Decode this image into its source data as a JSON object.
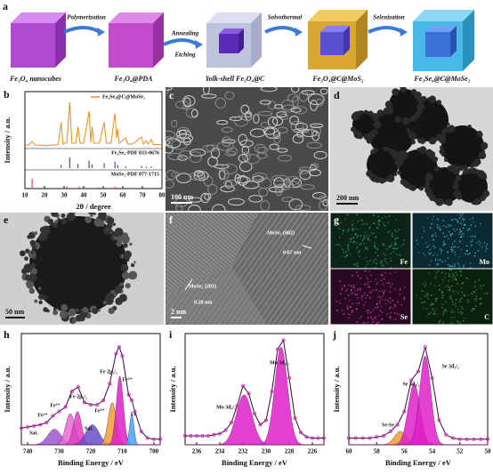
{
  "panel_a": {
    "label": "a",
    "products": [
      "Fe₃O₄ nanocubes",
      "Fe₃O₄@PDA",
      "Yolk-shell Fe₃O₄@C",
      "Fe₃O₄@C@MoS₂",
      "Fe₃Se₄@C@MoSe₂"
    ],
    "steps": [
      "Polymerization",
      "Annealing",
      "Etching",
      "Solvothermal",
      "Selenization"
    ]
  },
  "images": [
    {
      "label": "c",
      "scale_bar": "100 nm"
    },
    {
      "label": "d",
      "scale_bar": "200 nm"
    },
    {
      "label": "e",
      "scale_bar": "50 nm"
    },
    {
      "label": "f",
      "scale_bar": "2 nm",
      "annotations": [
        "MoSe₂ (002)",
        "0.67 nm",
        "MoSe₂ (203)",
        "0.28 nm"
      ]
    }
  ],
  "panel_g": {
    "label": "g",
    "maps": [
      "Fe",
      "Mo",
      "Se",
      "C"
    ]
  },
  "chart_data": [
    {
      "type": "line",
      "label": "b",
      "xlabel": "2θ / degree",
      "ylabel": "Intensity / a.u.",
      "xlim": [
        10,
        80
      ],
      "xticks": [
        10,
        20,
        30,
        40,
        50,
        60,
        70,
        80
      ],
      "ylim": [
        0,
        100
      ],
      "series": [
        {
          "name": "Fe₃Se₄@C@MoSe₂",
          "color": "#f08a24",
          "x": [
            10,
            12,
            13.6,
            15,
            20,
            25,
            27,
            28.5,
            29.5,
            31.4,
            32.9,
            34,
            36,
            37.1,
            38.2,
            40,
            42.8,
            43.6,
            44.3,
            45.2,
            48,
            50.5,
            51.6,
            54,
            56,
            56.8,
            57.4,
            58.2,
            61.5,
            62.5,
            65,
            69.6,
            70.5,
            72,
            73,
            74.5,
            75.5,
            78,
            80
          ],
          "values": [
            4,
            4,
            12,
            4,
            3,
            4,
            5,
            55,
            6,
            10,
            100,
            8,
            8,
            45,
            8,
            8,
            80,
            10,
            45,
            8,
            8,
            55,
            8,
            8,
            75,
            20,
            40,
            8,
            20,
            6,
            6,
            22,
            6,
            14,
            6,
            16,
            5,
            5,
            4
          ]
        },
        {
          "name": "Fe₃Se₄-PDF 033-0676",
          "color": "#6a3fb5",
          "type": "stick",
          "x": [
            28.5,
            32.9,
            37.1,
            42.8,
            44.3,
            50.5,
            56,
            57.4,
            61.5,
            69.6,
            72,
            74.5
          ],
          "values": [
            30,
            100,
            40,
            70,
            35,
            45,
            60,
            30,
            15,
            20,
            12,
            14
          ]
        },
        {
          "name": "MoSe₂-PDF 077-1715",
          "color": "#e0409a",
          "type": "stick",
          "x": [
            13.7,
            31.4,
            37.8,
            47.5,
            55.9,
            57
          ],
          "values": [
            100,
            25,
            20,
            15,
            18,
            12
          ]
        }
      ]
    },
    {
      "type": "area",
      "label": "h",
      "xlabel": "Binding Energy / eV",
      "ylabel": "Intensity / a.u.",
      "xlim": [
        742,
        698
      ],
      "xticks": [
        740,
        730,
        720,
        710,
        700
      ],
      "ylim": [
        0,
        100
      ],
      "series": [
        {
          "color": "#e020c8",
          "x": [
            742,
            740,
            738,
            736,
            734,
            732,
            730,
            728,
            726,
            724,
            722,
            720,
            718,
            716,
            714,
            712,
            711,
            710,
            708,
            707,
            706,
            704,
            702,
            700,
            698
          ],
          "values": [
            15,
            16,
            17,
            18,
            20,
            26,
            30,
            34,
            48,
            52,
            38,
            36,
            36,
            40,
            55,
            82,
            88,
            80,
            45,
            40,
            30,
            12,
            6,
            5,
            5
          ]
        }
      ],
      "components": [
        {
          "center": 731.5,
          "height": 14,
          "fwhm": 5,
          "color": "#9b59d0"
        },
        {
          "center": 726.5,
          "height": 28,
          "fwhm": 3.5,
          "color": "#e86bd0"
        },
        {
          "center": 724.2,
          "height": 30,
          "fwhm": 3,
          "color": "#e040c0"
        },
        {
          "center": 719.5,
          "height": 18,
          "fwhm": 5,
          "color": "#6a4fc8"
        },
        {
          "center": 713.2,
          "height": 38,
          "fwhm": 3,
          "color": "#f0a030"
        },
        {
          "center": 710.8,
          "height": 62,
          "fwhm": 2.6,
          "color": "#e020c8"
        },
        {
          "center": 707,
          "height": 28,
          "fwhm": 1.6,
          "color": "#40a8f0"
        }
      ],
      "annotations": [
        "Fe 2p₃/₂",
        "Fe²⁺",
        "Fe 2p₁/₂",
        "Fe³⁺",
        "Fe³⁺",
        "Fe²⁺",
        "Fe",
        "Sat.",
        "Sat."
      ]
    },
    {
      "type": "area",
      "label": "i",
      "xlabel": "Binding Energy / eV",
      "ylabel": "Intensity / a.u.",
      "xlim": [
        237,
        225
      ],
      "xticks": [
        236,
        234,
        232,
        230,
        228,
        226
      ],
      "ylim": [
        0,
        100
      ],
      "series": [
        {
          "color": "#e020c8",
          "x": [
            237,
            236.5,
            236,
            235.5,
            235,
            234.5,
            234,
            233.5,
            233,
            232.5,
            232,
            231.5,
            231,
            230.5,
            230,
            229.5,
            229,
            228.5,
            228,
            227.5,
            227,
            226.5,
            226,
            225.5,
            225
          ],
          "values": [
            8,
            8,
            8,
            8,
            8,
            9,
            10,
            13,
            20,
            35,
            53,
            46,
            28,
            18,
            22,
            48,
            86,
            94,
            60,
            24,
            11,
            7,
            6,
            6,
            6
          ]
        }
      ],
      "components": [
        {
          "center": 231.9,
          "height": 45,
          "fwhm": 1.6,
          "color": "#e020c8"
        },
        {
          "center": 228.7,
          "height": 88,
          "fwhm": 1.3,
          "color": "#e020c8"
        }
      ],
      "annotations": [
        "Mo 3d₃/₂",
        "Mo 3d₅/₂"
      ]
    },
    {
      "type": "area",
      "label": "j",
      "xlabel": "Binding Energy / eV",
      "ylabel": "Intensity / a.u.",
      "xlim": [
        60,
        50
      ],
      "xticks": [
        60,
        58,
        56,
        54,
        52,
        50
      ],
      "ylim": [
        0,
        100
      ],
      "series": [
        {
          "color": "#e020c8",
          "x": [
            60,
            59.5,
            59,
            58.5,
            58,
            57.5,
            57,
            56.5,
            56,
            55.5,
            55,
            54.5,
            54,
            53.5,
            53,
            52.5,
            52,
            51.5,
            51,
            50.5,
            50
          ],
          "values": [
            6,
            6,
            6,
            6,
            7,
            8,
            12,
            18,
            30,
            58,
            66,
            88,
            60,
            22,
            9,
            6,
            5,
            5,
            5,
            5,
            5
          ]
        }
      ],
      "components": [
        {
          "center": 56.3,
          "height": 12,
          "fwhm": 1.0,
          "color": "#f0a030"
        },
        {
          "center": 55.3,
          "height": 55,
          "fwhm": 1.0,
          "color": "#e020c8"
        },
        {
          "center": 54.5,
          "height": 80,
          "fwhm": 0.95,
          "color": "#e020c8"
        }
      ],
      "annotations": [
        "Se 3d₅/₂",
        "Se 3d₃/₂",
        "Se-Se"
      ]
    }
  ]
}
